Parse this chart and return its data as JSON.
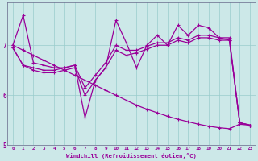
{
  "xlabel": "Windchill (Refroidissement éolien,°C)",
  "background_color": "#cce8e8",
  "line_color": "#990099",
  "grid_color": "#99cccc",
  "xlim": [
    -0.5,
    23.5
  ],
  "ylim": [
    5.0,
    7.85
  ],
  "yticks": [
    5,
    6,
    7
  ],
  "xticks": [
    0,
    1,
    2,
    3,
    4,
    5,
    6,
    7,
    8,
    9,
    10,
    11,
    12,
    13,
    14,
    15,
    16,
    17,
    18,
    19,
    20,
    21,
    22,
    23
  ],
  "series": {
    "line1_zigzag": [
      7.0,
      7.6,
      6.65,
      6.6,
      6.55,
      6.55,
      6.6,
      5.55,
      6.3,
      6.55,
      7.5,
      7.05,
      6.55,
      7.0,
      7.2,
      7.0,
      7.4,
      7.2,
      7.4,
      7.35,
      7.15,
      7.1,
      5.45,
      5.4
    ],
    "line2_zigzag": [
      6.95,
      6.6,
      6.55,
      6.5,
      6.5,
      6.55,
      6.6,
      6.15,
      6.4,
      6.65,
      7.0,
      6.9,
      6.9,
      6.98,
      7.05,
      7.05,
      7.15,
      7.1,
      7.2,
      7.2,
      7.15,
      7.15,
      5.45,
      5.4
    ],
    "line3_zigzag": [
      6.95,
      6.6,
      6.5,
      6.45,
      6.45,
      6.5,
      6.55,
      6.0,
      6.3,
      6.55,
      6.9,
      6.8,
      6.85,
      6.92,
      7.0,
      7.0,
      7.1,
      7.05,
      7.15,
      7.15,
      7.1,
      7.1,
      5.45,
      5.4
    ],
    "line4_descend": [
      7.0,
      6.9,
      6.8,
      6.7,
      6.6,
      6.5,
      6.4,
      6.3,
      6.2,
      6.1,
      6.0,
      5.9,
      5.8,
      5.72,
      5.65,
      5.58,
      5.52,
      5.47,
      5.42,
      5.38,
      5.35,
      5.33,
      5.42,
      5.4
    ]
  }
}
